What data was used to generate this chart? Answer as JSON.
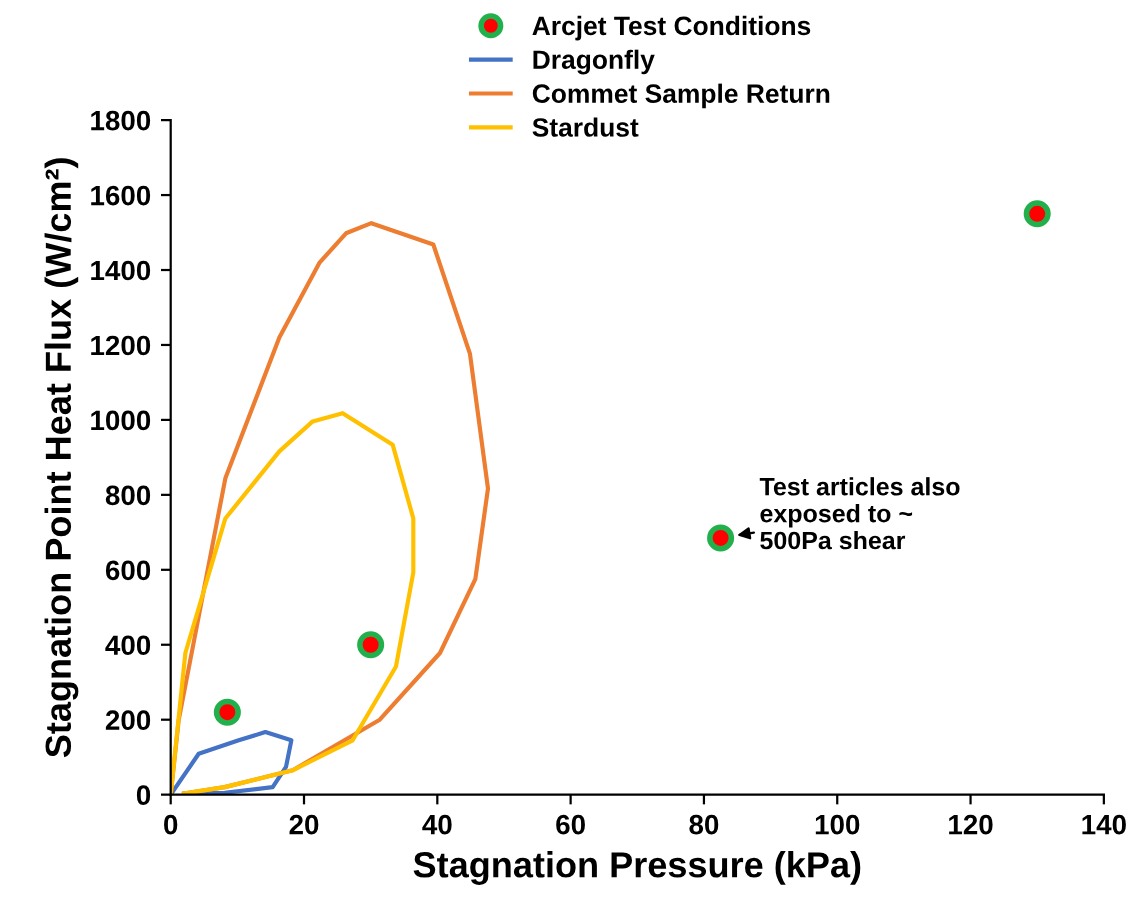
{
  "chart_data": {
    "type": "line",
    "xlabel": "Stagnation Pressure (kPa)",
    "ylabel": "Stagnation Point Heat Flux (W/cm²)",
    "xlim": [
      0,
      140
    ],
    "ylim": [
      0,
      1800
    ],
    "xticks": [
      0,
      20,
      40,
      60,
      80,
      100,
      120,
      140
    ],
    "yticks": [
      0,
      200,
      400,
      600,
      800,
      1000,
      1200,
      1400,
      1600,
      1800
    ],
    "grid": false,
    "legend": "top right",
    "series": [
      {
        "name": "Arcjet Test Conditions",
        "type": "scatter",
        "color": "#ff0000",
        "x": [
          8.5,
          30,
          82.5,
          130
        ],
        "values": [
          220,
          400,
          685,
          1550
        ]
      },
      {
        "name": "Dragonfly",
        "type": "line",
        "color": "#4472c4",
        "x": [
          0,
          4.2,
          10.2,
          14.2,
          18.1,
          17.3,
          15.3,
          8.1,
          2
        ],
        "values": [
          0,
          109,
          145,
          167,
          145,
          74,
          20,
          5,
          2
        ]
      },
      {
        "name": "Commet Sample Return",
        "type": "line",
        "color": "#ed7d31",
        "x": [
          0,
          1.2,
          8.2,
          16.3,
          22.3,
          26.3,
          30.1,
          39.4,
          44.9,
          47.6,
          45.7,
          40.4,
          31.3,
          18.3,
          8.1,
          2
        ],
        "values": [
          0,
          199,
          844,
          1220,
          1419,
          1498,
          1525,
          1468,
          1176,
          817,
          575,
          378,
          199,
          65,
          20,
          3
        ]
      },
      {
        "name": "Stardust",
        "type": "line",
        "color": "#ffc000",
        "x": [
          0,
          2.2,
          8.2,
          16.3,
          21.3,
          25.8,
          33.3,
          36.4,
          36.4,
          33.8,
          27.3,
          18.3,
          8.1,
          2
        ],
        "values": [
          0,
          378,
          737,
          916,
          996,
          1018,
          934,
          737,
          593,
          342,
          145,
          65,
          20,
          3
        ]
      }
    ],
    "annotations": [
      {
        "text": "Test articles also\nexposed to ~\n500Pa shear",
        "x": 82.5,
        "y": 685
      }
    ]
  }
}
